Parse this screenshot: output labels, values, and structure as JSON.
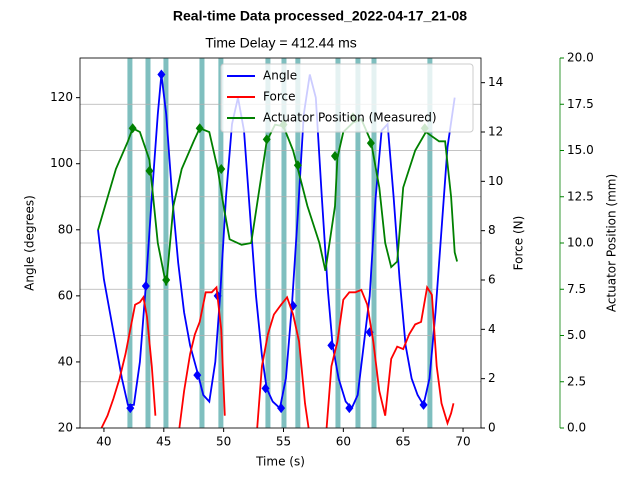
{
  "chart_data": {
    "type": "line",
    "title": "Real-time Data processed_2022-04-17_21-08",
    "subtitle": "Time Delay = 412.44 ms",
    "xlabel": "Time (s)",
    "ylabel": "Angle (degrees)",
    "y2label": "Force (N)",
    "y3label": "Actuator Position (mm)",
    "xlim": [
      38,
      71.5
    ],
    "ylim": [
      20,
      132
    ],
    "y2lim": [
      0,
      15
    ],
    "y3lim": [
      0,
      20
    ],
    "xticks": [
      40,
      45,
      50,
      55,
      60,
      65,
      70
    ],
    "yticks": [
      20,
      40,
      60,
      80,
      100,
      120
    ],
    "y2ticks": [
      0,
      2,
      4,
      6,
      8,
      10,
      12,
      14
    ],
    "y3ticks": [
      {
        "value": 0,
        "label": "0.0"
      },
      2.5,
      {
        "value": 5,
        "label": "5.0"
      },
      7.5,
      {
        "value": 10,
        "label": "10.0"
      },
      12.5,
      {
        "value": 15,
        "label": "15.0"
      },
      17.5,
      {
        "value": 20,
        "label": "20.0"
      }
    ],
    "grid": true,
    "legend": "upper right",
    "band_color": "#008080",
    "bands": [
      42.17,
      43.68,
      45.18,
      48.19,
      49.77,
      53.7,
      55.04,
      56.2,
      59.55,
      61.22,
      62.56,
      67.23
    ],
    "series": [
      {
        "name": "Angle",
        "color": "#0000ff",
        "axis": "y",
        "x": [
          39.5,
          40,
          40.5,
          41,
          41.5,
          42,
          42.5,
          43,
          43.5,
          44,
          44.5,
          44.8,
          45.2,
          45.7,
          46.2,
          46.7,
          47.2,
          47.8,
          48.3,
          48.8,
          49.3,
          49.7,
          50.2,
          50.7,
          51.2,
          51.7,
          52.2,
          52.7,
          53.2,
          53.6,
          54.1,
          54.7,
          55.2,
          55.7,
          56.2,
          56.7,
          57.2,
          57.7,
          58.2,
          58.7,
          59.1,
          59.6,
          60.2,
          60.7,
          61.2,
          61.7,
          62.2,
          62.7,
          63.2,
          63.7,
          64.2,
          64.7,
          65.2,
          65.7,
          66.2,
          66.7,
          67.2,
          67.7,
          68.2,
          68.7,
          69.3
        ],
        "values": [
          80,
          65,
          55,
          45,
          35,
          27,
          27,
          40,
          63,
          90,
          115,
          127,
          115,
          90,
          70,
          55,
          45,
          37,
          30,
          28,
          40,
          60,
          90,
          112,
          120,
          110,
          85,
          60,
          42,
          32,
          28,
          26,
          35,
          57,
          85,
          115,
          127,
          120,
          90,
          62,
          45,
          35,
          28,
          26,
          30,
          45,
          60,
          90,
          110,
          112,
          90,
          65,
          45,
          35,
          30,
          27,
          35,
          55,
          80,
          105,
          120
        ],
        "marker_x": [
          42.2,
          43.5,
          44.8,
          47.8,
          49.5,
          53.5,
          54.8,
          55.8,
          59.0,
          60.5,
          62.2,
          66.7
        ],
        "marker_values": [
          26,
          63,
          127,
          36,
          60,
          32,
          26,
          57,
          45,
          26,
          49,
          27
        ]
      },
      {
        "name": "Force",
        "color": "#ff0000",
        "axis": "y2",
        "x": [
          39.8,
          40.3,
          40.8,
          41.3,
          41.8,
          42.2,
          42.6,
          43,
          43.3,
          43.6,
          44,
          44.3,
          45,
          46.3,
          46.7,
          47.2,
          47.6,
          48,
          48.5,
          49,
          49.4,
          49.8,
          50.1,
          51,
          52.8,
          53.2,
          53.7,
          54.2,
          54.8,
          55.3,
          55.8,
          56.3,
          56.8,
          57.1,
          58,
          58.6,
          59,
          59.5,
          60,
          60.5,
          61,
          61.5,
          62,
          62.5,
          63,
          63.5,
          64,
          64.5,
          65,
          65.5,
          66,
          66.5,
          67,
          67.4,
          67.8,
          68.2,
          68.7,
          69,
          69.2
        ],
        "values": [
          0,
          0.5,
          1.2,
          2,
          3,
          4,
          5,
          5.1,
          5.3,
          4.5,
          2.5,
          0.5,
          null,
          0,
          1.5,
          3,
          3.8,
          4.3,
          5.5,
          5.5,
          5.7,
          4,
          0.5,
          null,
          0,
          2.5,
          3.8,
          4.6,
          5,
          5.3,
          4.6,
          3.5,
          1,
          0,
          null,
          0,
          2.5,
          3.5,
          5.2,
          5.5,
          5.5,
          5.6,
          5,
          3.5,
          1.5,
          0.5,
          2.8,
          3.3,
          3.2,
          3.8,
          4.2,
          4.3,
          5.7,
          5.4,
          2.5,
          1,
          0.2,
          0.6,
          1
        ]
      },
      {
        "name": "Actuator Position (Measured)",
        "color": "#008000",
        "axis": "y3",
        "x": [
          39.5,
          41,
          42,
          42.4,
          43,
          43.8,
          44.5,
          45.2,
          45.8,
          46.5,
          47.5,
          48,
          48.8,
          49.5,
          50,
          50.5,
          51.5,
          52.3,
          53,
          53.6,
          54.3,
          55,
          55.8,
          56.2,
          57,
          58,
          58.5,
          59.3,
          59.5,
          60,
          60.8,
          61.5,
          62.3,
          63,
          63.5,
          64,
          64.5,
          65,
          66,
          66.9,
          68,
          68.5,
          69,
          69.3,
          69.5
        ],
        "values": [
          10.7,
          14,
          15.5,
          16.2,
          16,
          14.5,
          10,
          7.7,
          12,
          14,
          15.5,
          16.2,
          16,
          14,
          12,
          10.2,
          9.9,
          10,
          13,
          15.5,
          16.4,
          16.3,
          15,
          14,
          12,
          10,
          8.5,
          12,
          14.6,
          16,
          16.5,
          16.7,
          15.5,
          13,
          10,
          8.7,
          9,
          13,
          15,
          16,
          15.5,
          15.5,
          12.5,
          9.5,
          9
        ],
        "marker_x": [
          42.4,
          43.8,
          45.2,
          48.0,
          49.8,
          53.6,
          55.0,
          56.2,
          59.3,
          60.8,
          62.3,
          66.8
        ],
        "marker_values": [
          16.2,
          13.9,
          8.0,
          16.2,
          14.0,
          15.6,
          16.4,
          14.2,
          14.7,
          16.8,
          15.4,
          16.2
        ]
      }
    ]
  }
}
